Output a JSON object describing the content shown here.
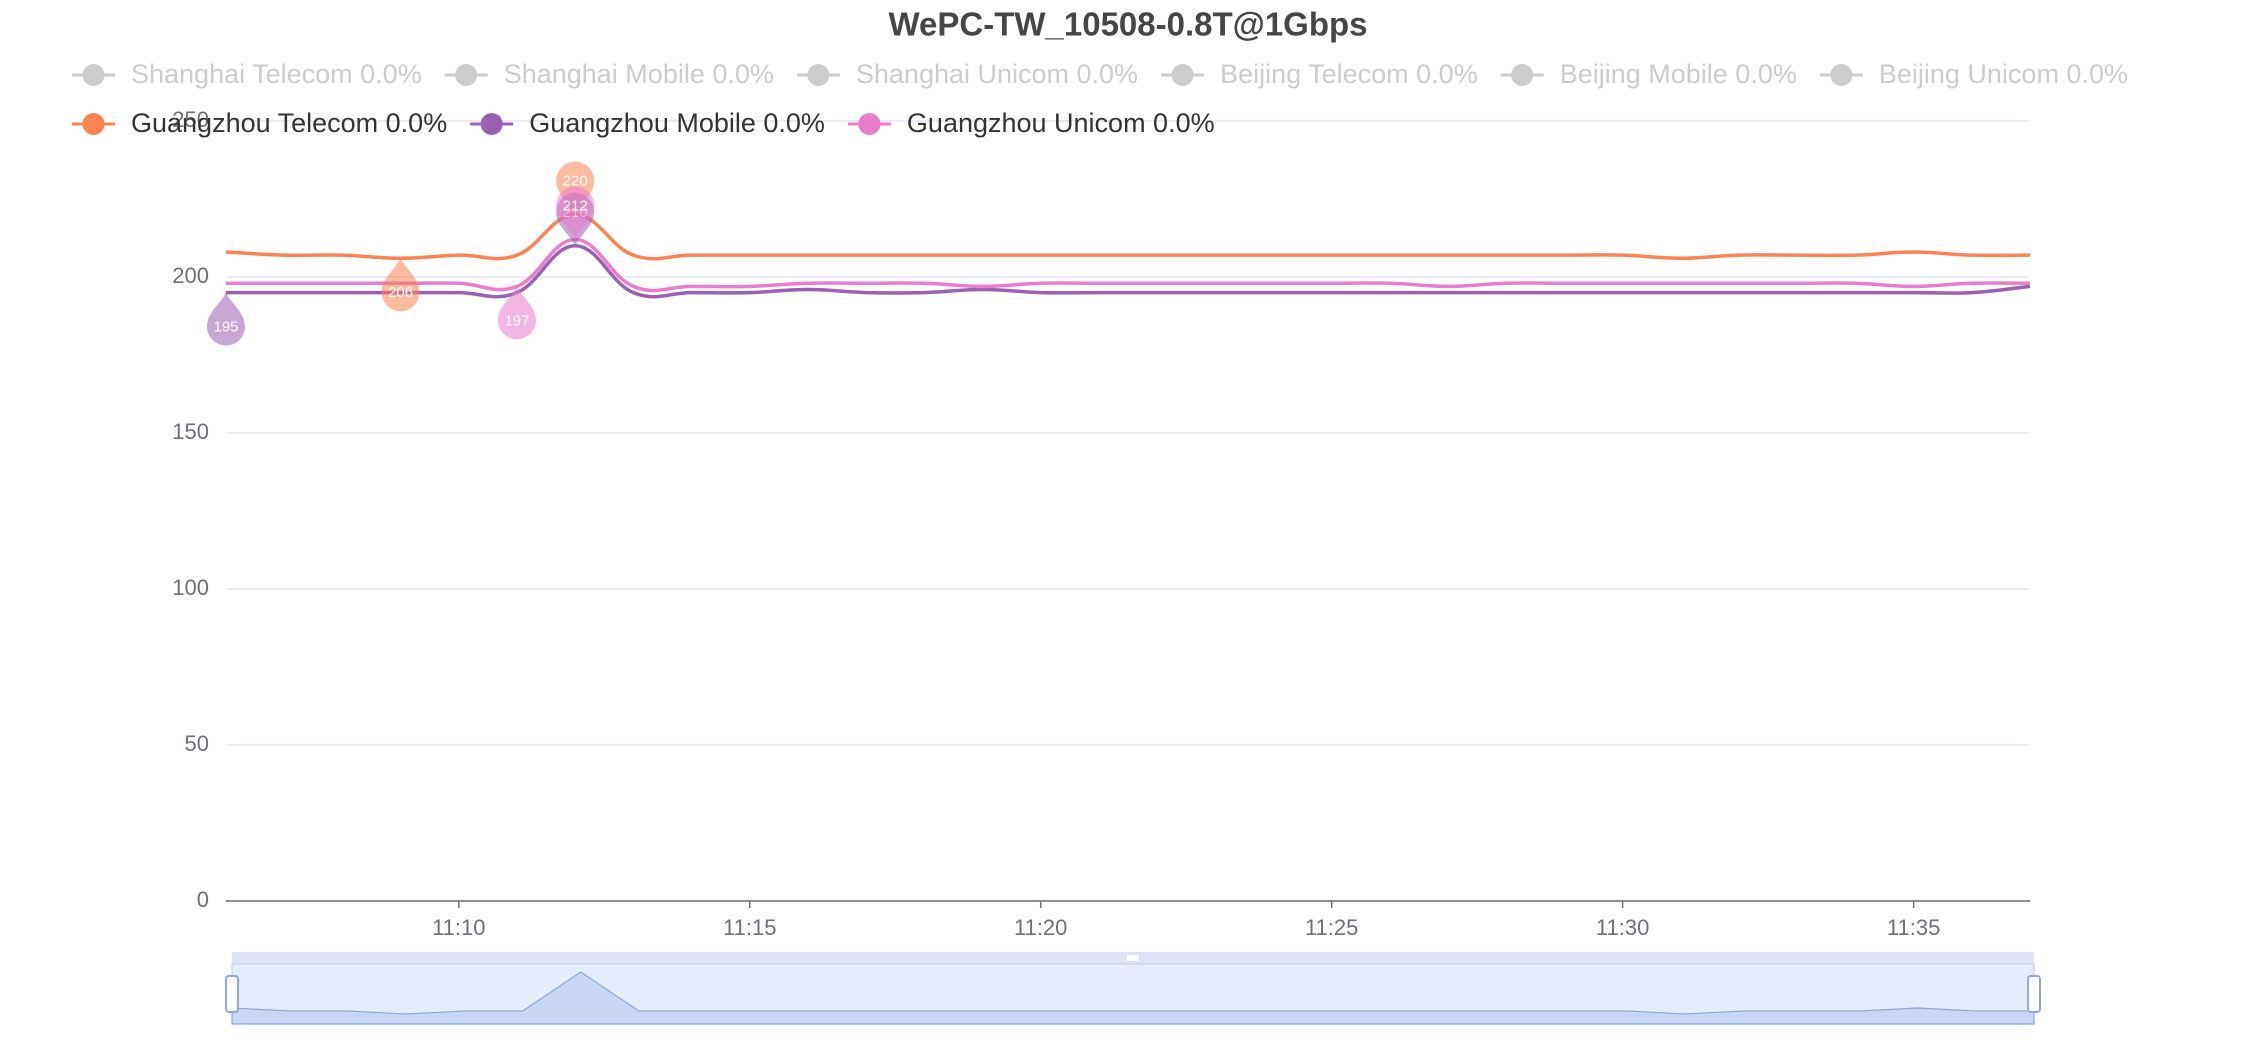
{
  "chart_data": {
    "type": "line",
    "title": "WePC-TW_10508-0.8T@1Gbps",
    "categories": [
      null,
      null,
      null,
      null,
      "11:10",
      null,
      null,
      null,
      null,
      "11:15",
      null,
      null,
      null,
      null,
      "11:20",
      null,
      null,
      null,
      null,
      "11:25",
      null,
      null,
      null,
      null,
      "11:30",
      null,
      null,
      null,
      null,
      "11:35",
      null,
      null
    ],
    "ylim": [
      0,
      250
    ],
    "yticks": [
      0,
      50,
      100,
      150,
      200,
      250
    ],
    "grid": true,
    "smooth": true,
    "series": [
      {
        "name": "Shanghai Telecom 0.0%",
        "color": "#5470c6",
        "visible": false
      },
      {
        "name": "Shanghai Mobile 0.0%",
        "color": "#91cc75",
        "visible": false
      },
      {
        "name": "Shanghai Unicom 0.0%",
        "color": "#fac858",
        "visible": false
      },
      {
        "name": "Beijing Telecom 0.0%",
        "color": "#ee6666",
        "visible": false
      },
      {
        "name": "Beijing Mobile 0.0%",
        "color": "#73c0de",
        "visible": false
      },
      {
        "name": "Beijing Unicom 0.0%",
        "color": "#3ba272",
        "visible": false
      },
      {
        "name": "Guangzhou Telecom 0.0%",
        "color": "#fc8452",
        "visible": true,
        "values": [
          208,
          207,
          207,
          206,
          207,
          207,
          220,
          207,
          207,
          207,
          207,
          207,
          207,
          207,
          207,
          207,
          207,
          207,
          207,
          207,
          207,
          207,
          207,
          207,
          207,
          206,
          207,
          207,
          207,
          208,
          207,
          207
        ]
      },
      {
        "name": "Guangzhou Mobile 0.0%",
        "color": "#9a60b4",
        "visible": true,
        "values": [
          195,
          195,
          195,
          195,
          195,
          195,
          210,
          195,
          195,
          195,
          196,
          195,
          195,
          196,
          195,
          195,
          195,
          195,
          195,
          195,
          195,
          195,
          195,
          195,
          195,
          195,
          195,
          195,
          195,
          195,
          195,
          197
        ]
      },
      {
        "name": "Guangzhou Unicom 0.0%",
        "color": "#ea7ccc",
        "visible": true,
        "values": [
          198,
          198,
          198,
          198,
          198,
          197,
          212,
          197,
          197,
          197,
          198,
          198,
          198,
          197,
          198,
          198,
          198,
          198,
          198,
          198,
          198,
          197,
          198,
          198,
          198,
          198,
          198,
          198,
          198,
          197,
          198,
          198
        ]
      }
    ]
  }
}
